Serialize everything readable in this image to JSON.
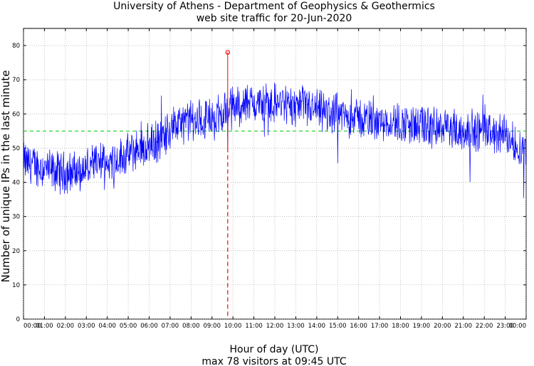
{
  "chart_data": {
    "type": "line",
    "title": "University of Athens - Department of Geophysics & Geothermics",
    "subtitle": "web site traffic for 20-Jun-2020",
    "xlabel": "Hour of day (UTC)",
    "ylabel": "Number of unique IPs in the last minute",
    "footer": "max 78 visitors at 09:45 UTC",
    "ylim": [
      0,
      85
    ],
    "xlim": [
      0,
      24
    ],
    "yticks": [
      0,
      10,
      20,
      30,
      40,
      50,
      60,
      70,
      80
    ],
    "xticks": [
      "00:00",
      "01:00",
      "02:00",
      "03:00",
      "04:00",
      "05:00",
      "06:00",
      "07:00",
      "08:00",
      "09:00",
      "10:00",
      "11:00",
      "12:00",
      "13:00",
      "14:00",
      "15:00",
      "16:00",
      "17:00",
      "18:00",
      "19:00",
      "20:00",
      "21:00",
      "22:00",
      "23:00",
      "00:00"
    ],
    "grid": true,
    "average_line": 55,
    "max_point": {
      "hour": 9.75,
      "value": 78,
      "label": "09:45"
    },
    "series": [
      {
        "values_hourly_mean": [
          [
            0.0,
            46
          ],
          [
            0.5,
            45
          ],
          [
            1.0,
            44
          ],
          [
            1.5,
            43
          ],
          [
            2.0,
            43
          ],
          [
            2.5,
            43
          ],
          [
            3.0,
            44
          ],
          [
            3.5,
            45
          ],
          [
            4.0,
            46
          ],
          [
            4.5,
            47
          ],
          [
            5.0,
            48
          ],
          [
            5.5,
            50
          ],
          [
            6.0,
            51
          ],
          [
            6.5,
            52
          ],
          [
            7.0,
            56
          ],
          [
            7.5,
            57
          ],
          [
            8.0,
            58
          ],
          [
            8.5,
            58
          ],
          [
            9.0,
            59
          ],
          [
            9.5,
            60
          ],
          [
            10.0,
            62
          ],
          [
            10.5,
            63
          ],
          [
            11.0,
            63
          ],
          [
            11.5,
            63
          ],
          [
            12.0,
            63
          ],
          [
            12.5,
            63
          ],
          [
            13.0,
            62
          ],
          [
            13.5,
            62
          ],
          [
            14.0,
            61
          ],
          [
            14.5,
            60
          ],
          [
            15.0,
            60
          ],
          [
            15.5,
            59
          ],
          [
            16.0,
            59
          ],
          [
            16.5,
            58
          ],
          [
            17.0,
            58
          ],
          [
            17.5,
            58
          ],
          [
            18.0,
            57
          ],
          [
            18.5,
            57
          ],
          [
            19.0,
            56
          ],
          [
            19.5,
            56
          ],
          [
            20.0,
            56
          ],
          [
            20.5,
            55
          ],
          [
            21.0,
            55
          ],
          [
            21.5,
            55
          ],
          [
            22.0,
            55
          ],
          [
            22.5,
            54
          ],
          [
            23.0,
            54
          ],
          [
            23.5,
            51
          ],
          [
            24.0,
            49
          ]
        ]
      }
    ],
    "colors": {
      "series": "#0000ff",
      "average": "#00cc00",
      "max_marker": "#ff0000",
      "grid": "#999999"
    }
  }
}
